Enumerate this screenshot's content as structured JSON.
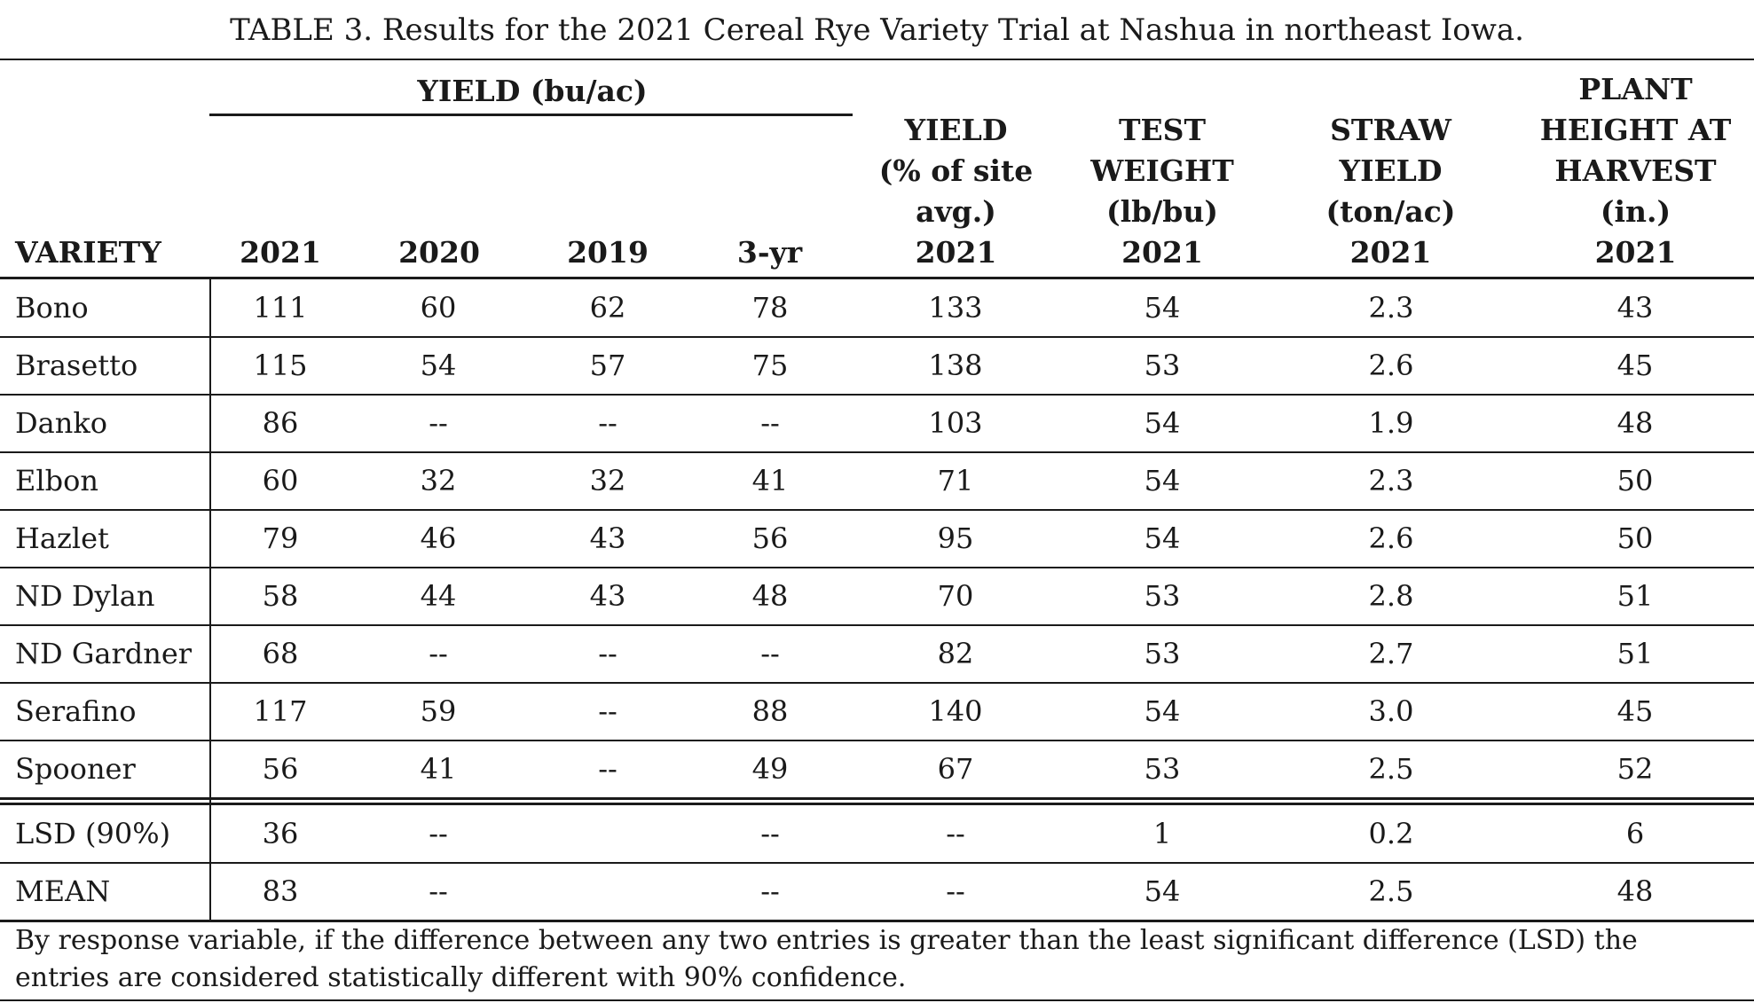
{
  "caption": "TABLE 3. Results for the 2021 Cereal Rye Variety Trial at Nashua in northeast Iowa.",
  "headers": {
    "group_yield": "YIELD (bu/ac)",
    "variety": "VARIETY",
    "y2021": "2021",
    "y2020": "2020",
    "y2019": "2019",
    "y3yr": "3-yr",
    "pct_site": [
      "YIELD",
      "(% of site",
      "avg.)",
      "2021"
    ],
    "test_weight": [
      "TEST",
      "WEIGHT",
      "(lb/bu)",
      "2021"
    ],
    "straw_yield": [
      "STRAW",
      "YIELD",
      "(ton/ac)",
      "2021"
    ],
    "plant_height": [
      "PLANT",
      "HEIGHT AT",
      "HARVEST",
      "(in.)",
      "2021"
    ]
  },
  "rows": [
    [
      "Bono",
      "111",
      "60",
      "62",
      "78",
      "133",
      "54",
      "2.3",
      "43"
    ],
    [
      "Brasetto",
      "115",
      "54",
      "57",
      "75",
      "138",
      "53",
      "2.6",
      "45"
    ],
    [
      "Danko",
      "86",
      "--",
      "--",
      "--",
      "103",
      "54",
      "1.9",
      "48"
    ],
    [
      "Elbon",
      "60",
      "32",
      "32",
      "41",
      "71",
      "54",
      "2.3",
      "50"
    ],
    [
      "Hazlet",
      "79",
      "46",
      "43",
      "56",
      "95",
      "54",
      "2.6",
      "50"
    ],
    [
      "ND Dylan",
      "58",
      "44",
      "43",
      "48",
      "70",
      "53",
      "2.8",
      "51"
    ],
    [
      "ND Gardner",
      "68",
      "--",
      "--",
      "--",
      "82",
      "53",
      "2.7",
      "51"
    ],
    [
      "Serafino",
      "117",
      "59",
      "--",
      "88",
      "140",
      "54",
      "3.0",
      "45"
    ],
    [
      "Spooner",
      "56",
      "41",
      "--",
      "49",
      "67",
      "53",
      "2.5",
      "52"
    ]
  ],
  "summary_rows": [
    [
      "LSD (90%)",
      "36",
      "--",
      "",
      "--",
      "--",
      "1",
      "0.2",
      "6"
    ],
    [
      "MEAN",
      "83",
      "--",
      "",
      "--",
      "--",
      "54",
      "2.5",
      "48"
    ]
  ],
  "footnote": "By response variable, if the difference between any two entries is greater than the least significant difference (LSD) the entries are considered statistically different with 90% confidence."
}
